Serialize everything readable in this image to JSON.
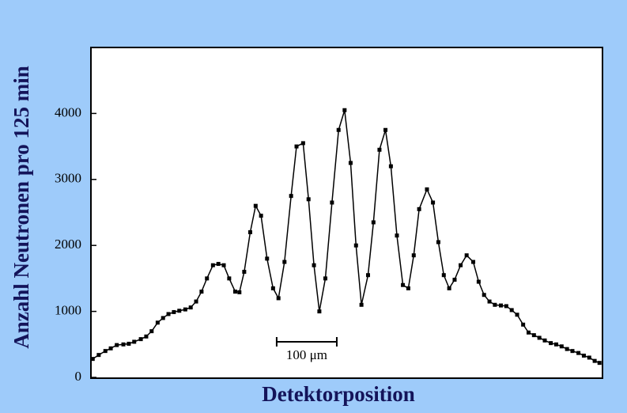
{
  "chart_data": {
    "type": "scatter",
    "x_label": "Detektorposition",
    "y_label": "Anzahl Neutronen pro 125 min",
    "xlim": [
      0,
      851
    ],
    "ylim": [
      0,
      5000
    ],
    "yticks": [
      0,
      1000,
      2000,
      3000,
      4000
    ],
    "grid": false,
    "connect": true,
    "color": "#000000",
    "scale_bar": {
      "label": "100 μm",
      "length": 100
    },
    "series": [
      {
        "name": null,
        "color": "#000000",
        "x": [
          3,
          13,
          24,
          33,
          43,
          54,
          63,
          72,
          83,
          92,
          101,
          111,
          120,
          129,
          138,
          147,
          157,
          166,
          175,
          184,
          193,
          203,
          212,
          221,
          230,
          240,
          247,
          255,
          265,
          274,
          283,
          293,
          303,
          312,
          322,
          333,
          342,
          353,
          362,
          371,
          380,
          390,
          401,
          412,
          422,
          432,
          441,
          450,
          461,
          470,
          480,
          490,
          499,
          509,
          519,
          528,
          537,
          546,
          559,
          569,
          578,
          587,
          596,
          605,
          615,
          625,
          636,
          645,
          654,
          663,
          672,
          682,
          691,
          700,
          709,
          719,
          728,
          737,
          746,
          755,
          765,
          774,
          783,
          792,
          801,
          811,
          820,
          829,
          838,
          846
        ],
        "values": [
          280,
          340,
          400,
          440,
          490,
          500,
          510,
          540,
          580,
          620,
          700,
          830,
          900,
          960,
          990,
          1010,
          1030,
          1060,
          1150,
          1300,
          1500,
          1700,
          1720,
          1700,
          1500,
          1300,
          1290,
          1600,
          2200,
          2600,
          2450,
          1800,
          1350,
          1200,
          1750,
          2750,
          3500,
          3550,
          2700,
          1700,
          1000,
          1500,
          2650,
          3750,
          4050,
          3250,
          2000,
          1100,
          1550,
          2350,
          3450,
          3750,
          3200,
          2150,
          1400,
          1350,
          1850,
          2550,
          2850,
          2650,
          2050,
          1550,
          1350,
          1480,
          1700,
          1850,
          1750,
          1450,
          1250,
          1150,
          1100,
          1090,
          1080,
          1020,
          950,
          800,
          680,
          640,
          600,
          560,
          520,
          500,
          470,
          430,
          400,
          370,
          330,
          300,
          250,
          220
        ]
      }
    ]
  }
}
